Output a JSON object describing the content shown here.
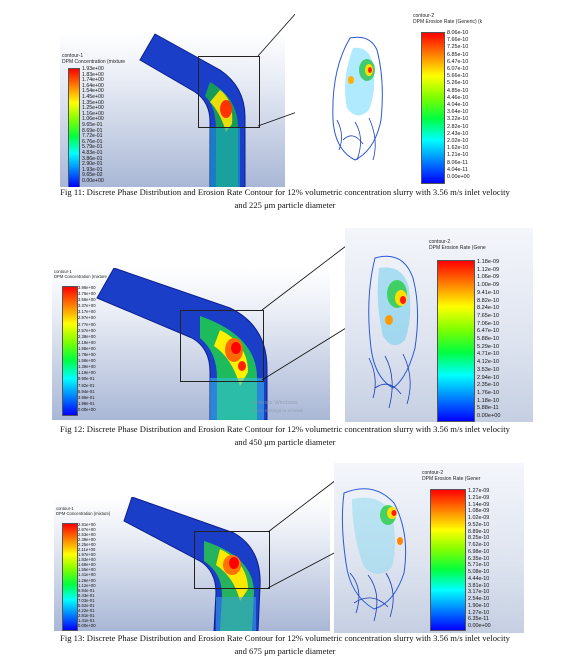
{
  "figures": [
    {
      "caption_line1": "Fig 11: Discrete Phase Distribution and Erosion Rate Contour for 12% volumetric concentration slurry with 3.56 m/s inlet velocity",
      "caption_line2": "and 225 μm particle diameter",
      "left": {
        "contour_name": "contour-1",
        "contour_quantity": "DPM Concentration (mixture",
        "ticks": [
          "1.93e+00",
          "1.83e+00",
          "1.74e+00",
          "1.64e+00",
          "1.54e+00",
          "1.45e+00",
          "1.35e+00",
          "1.25e+00",
          "1.16e+00",
          "1.06e+00",
          "9.65e-01",
          "8.69e-01",
          "7.72e-01",
          "6.76e-01",
          "5.79e-01",
          "4.83e-01",
          "3.86e-01",
          "2.90e-01",
          "1.93e-01",
          "9.65e-02",
          "0.00e+00"
        ]
      },
      "right": {
        "contour_name": "contour-2",
        "contour_quantity": "DPM Erosion Rate (Generic) (k",
        "ticks": [
          "8.06e-10",
          "7.66e-10",
          "7.25e-10",
          "6.85e-10",
          "6.47e-10",
          "6.07e-10",
          "5.66e-10",
          "5.26e-10",
          "4.85e-10",
          "4.46e-10",
          "4.04e-10",
          "3.64e-10",
          "3.22e-10",
          "2.82e-10",
          "2.43e-10",
          "2.02e-10",
          "1.62e-10",
          "1.21e-10",
          "8.06e-11",
          "4.04e-11",
          "0.00e+00"
        ]
      }
    },
    {
      "caption_line1": "Fig 12: Discrete Phase Distribution and Erosion Rate Contour for 12% volumetric concentration slurry with 3.56 m/s inlet velocity",
      "caption_line2": "and 450 μm particle diameter",
      "left": {
        "contour_name": "contour-1",
        "contour_quantity": "DPM Concentration (mixture",
        "ticks": [
          "3.96e+00",
          "3.76e+00",
          "3.56e+00",
          "3.37e+00",
          "3.17e+00",
          "2.97e+00",
          "2.77e+00",
          "2.57e+00",
          "2.38e+00",
          "2.18e+00",
          "1.98e+00",
          "1.78e+00",
          "1.58e+00",
          "1.39e+00",
          "1.19e+00",
          "9.90e-01",
          "7.92e-01",
          "5.94e-01",
          "3.96e-01",
          "1.98e-01",
          "0.00e+00"
        ]
      },
      "right": {
        "contour_name": "contour-2",
        "contour_quantity": "DPM Erosion Rate (Gene",
        "ticks": [
          "1.18e-09",
          "1.12e-09",
          "1.06e-09",
          "1.00e-09",
          "9.41e-10",
          "8.82e-10",
          "8.24e-10",
          "7.65e-10",
          "7.06e-10",
          "6.47e-10",
          "5.88e-10",
          "5.29e-10",
          "4.71e-10",
          "4.12e-10",
          "3.53e-10",
          "2.94e-10",
          "2.35e-10",
          "1.76e-10",
          "1.18e-10",
          "5.88e-11",
          "0.00e+00"
        ]
      },
      "watermark_line1": "Activate Windows",
      "watermark_line2": "Go to Settings to activate"
    },
    {
      "caption_line1": "Fig 13: Discrete Phase Distribution and Erosion Rate Contour for 12% volumetric concentration slurry with 3.56 m/s inlet velocity",
      "caption_line2": "and 675 μm particle diameter",
      "left": {
        "contour_name": "contour-1",
        "contour_quantity": "DPM Concentration (mixture)",
        "ticks": [
          "2.81e+00",
          "2.67e+00",
          "2.53e+00",
          "2.39e+00",
          "2.25e+00",
          "2.11e+00",
          "1.97e+00",
          "1.83e+00",
          "1.69e+00",
          "1.55e+00",
          "1.41e+00",
          "1.26e+00",
          "1.12e+00",
          "9.84e-01",
          "8.43e-01",
          "7.03e-01",
          "5.62e-01",
          "4.22e-01",
          "2.81e-01",
          "1.41e-01",
          "0.00e+00"
        ]
      },
      "right": {
        "contour_name": "contour-2",
        "contour_quantity": "DPM Erosion Rate (Gener",
        "ticks": [
          "1.27e-09",
          "1.21e-09",
          "1.14e-09",
          "1.08e-09",
          "1.02e-09",
          "9.52e-10",
          "8.89e-10",
          "8.25e-10",
          "7.62e-10",
          "6.98e-10",
          "6.35e-10",
          "5.71e-10",
          "5.08e-10",
          "4.44e-10",
          "3.81e-10",
          "3.17e-10",
          "2.54e-10",
          "1.90e-10",
          "1.27e-10",
          "6.35e-11",
          "0.00e+00"
        ]
      }
    }
  ],
  "colormap": {
    "stops": [
      "#ff0000",
      "#ff7f00",
      "#ffff00",
      "#7fff00",
      "#00ff40",
      "#00ffff",
      "#0080ff",
      "#0000ff"
    ],
    "pipe_base": "#1a35c8",
    "pipe_dark": "#0c1f8e"
  }
}
